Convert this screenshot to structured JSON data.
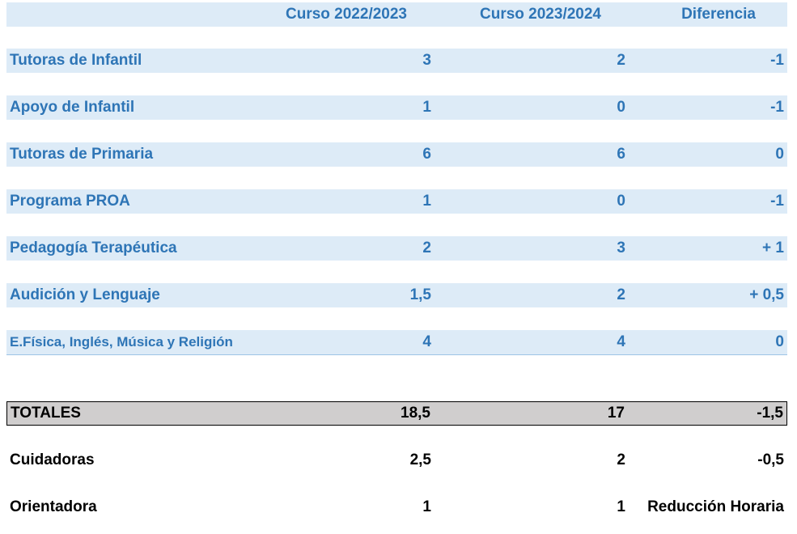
{
  "header": {
    "col_a": "Curso 2022/2023",
    "col_b": "Curso 2023/2024",
    "col_diff": "Diferencia"
  },
  "rows": [
    {
      "label": "Tutoras de Infantil",
      "a": "3",
      "b": "2",
      "diff": "-1"
    },
    {
      "label": "Apoyo de Infantil",
      "a": "1",
      "b": "0",
      "diff": "-1"
    },
    {
      "label": "Tutoras de Primaria",
      "a": "6",
      "b": "6",
      "diff": "0"
    },
    {
      "label": "Programa PROA",
      "a": "1",
      "b": "0",
      "diff": "-1"
    },
    {
      "label": "Pedagogía Terapéutica",
      "a": "2",
      "b": "3",
      "diff": "+ 1"
    },
    {
      "label": "Audición y Lenguaje",
      "a": "1,5",
      "b": "2",
      "diff": "+ 0,5"
    },
    {
      "label": "E.Física, Inglés, Música y Religión",
      "a": "4",
      "b": "4",
      "diff": "0"
    }
  ],
  "totals": {
    "label": "TOTALES",
    "a": "18,5",
    "b": "17",
    "diff": "-1,5"
  },
  "extra": [
    {
      "label": "Cuidadoras",
      "a": "2,5",
      "b": "2",
      "diff": "-0,5"
    },
    {
      "label": "Orientadora",
      "a": "1",
      "b": "1",
      "diff": "Reducción Horaria"
    }
  ],
  "colors": {
    "band": "#ddebf7",
    "text_blue": "#2e75b6",
    "totals_bg": "#d0cece"
  }
}
